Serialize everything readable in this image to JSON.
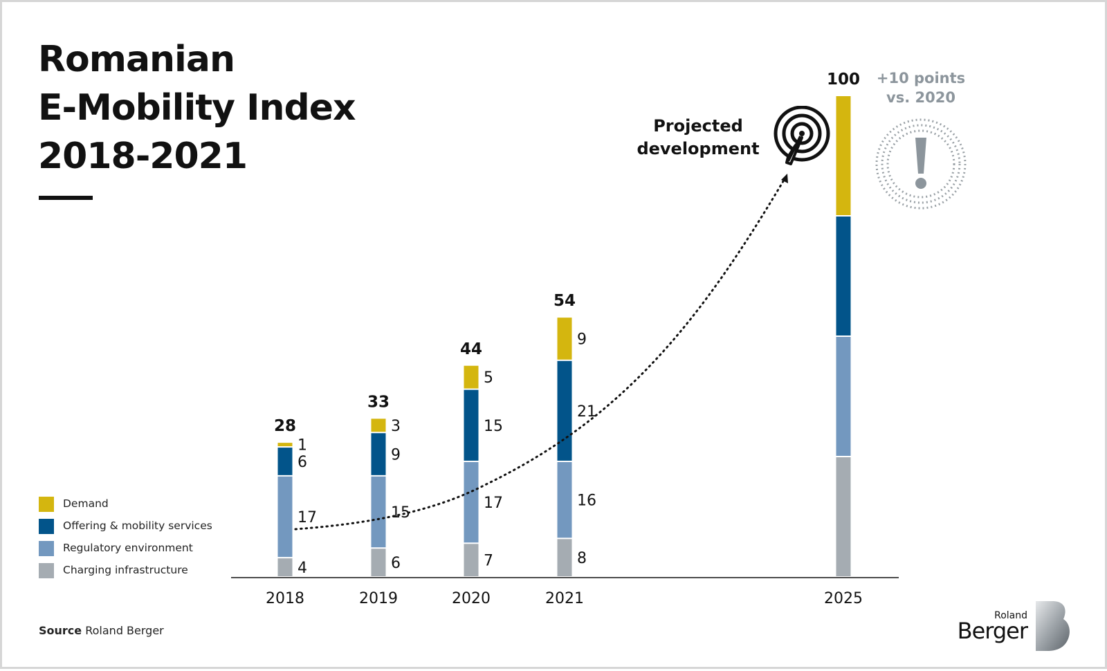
{
  "title": {
    "line1": "Romanian",
    "line2": "E-Mobility Index",
    "line3": "2018-2021"
  },
  "legend": [
    {
      "label": "Demand",
      "color": "#d4b60f"
    },
    {
      "label": "Offering & mobility services",
      "color": "#02548a"
    },
    {
      "label": "Regulatory environment",
      "color": "#7398bf"
    },
    {
      "label": "Charging infrastructure",
      "color": "#a5acb2"
    }
  ],
  "source": {
    "prefix": "Source",
    "text": "Roland Berger"
  },
  "logo": {
    "small": "Roland",
    "big": "Berger"
  },
  "annotations": {
    "projected_line1": "Projected",
    "projected_line2": "development",
    "note_line1": "+10 points",
    "note_line2": "vs. 2020"
  },
  "icons": {
    "target": "target-with-dart-icon",
    "alert": "exclamation-circle-icon",
    "logo": "roland-berger-b-logo-icon"
  },
  "chart_data": {
    "type": "bar",
    "stacked": true,
    "categories": [
      "2018",
      "2019",
      "2020",
      "2021",
      "2025"
    ],
    "series": [
      {
        "name": "Charging infrastructure",
        "color": "#a5acb2",
        "values": [
          4,
          6,
          7,
          8,
          25
        ]
      },
      {
        "name": "Regulatory environment",
        "color": "#7398bf",
        "values": [
          17,
          15,
          17,
          16,
          25
        ]
      },
      {
        "name": "Offering & mobility services",
        "color": "#02548a",
        "values": [
          6,
          9,
          15,
          21,
          25
        ]
      },
      {
        "name": "Demand",
        "color": "#d4b60f",
        "values": [
          1,
          3,
          5,
          9,
          25
        ]
      }
    ],
    "segment_labels_shown_for": [
      "2018",
      "2019",
      "2020",
      "2021"
    ],
    "totals": [
      "28",
      "33",
      "44",
      "54",
      "100"
    ],
    "ylim": [
      0,
      100
    ]
  }
}
